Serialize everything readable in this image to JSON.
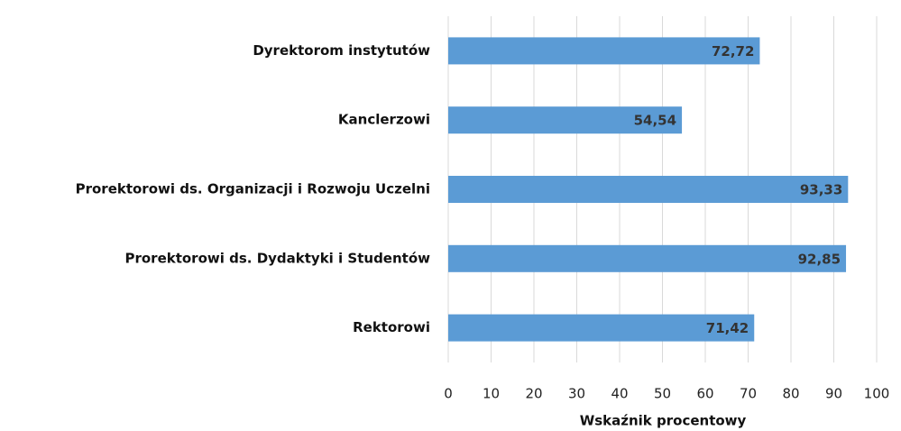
{
  "chart_data": {
    "type": "bar",
    "orientation": "horizontal",
    "xlabel": "Wskaźnik procentowy",
    "categories": [
      "Dyrektorom instytutów",
      "Kanclerzowi",
      "Prorektorowi ds. Organizacji i Rozwoju Uczelni",
      "Prorektorowi ds. Dydaktyki i Studentów",
      "Rektorowi"
    ],
    "values": [
      72.72,
      54.54,
      93.33,
      92.85,
      71.42
    ],
    "value_labels": [
      "72,72",
      "54,54",
      "93,33",
      "92,85",
      "71,42"
    ],
    "color": "#5b9bd5",
    "xlim": [
      0,
      100
    ],
    "xticks": [
      0,
      10,
      20,
      30,
      40,
      50,
      60,
      70,
      80,
      90,
      100
    ],
    "grid": true
  }
}
